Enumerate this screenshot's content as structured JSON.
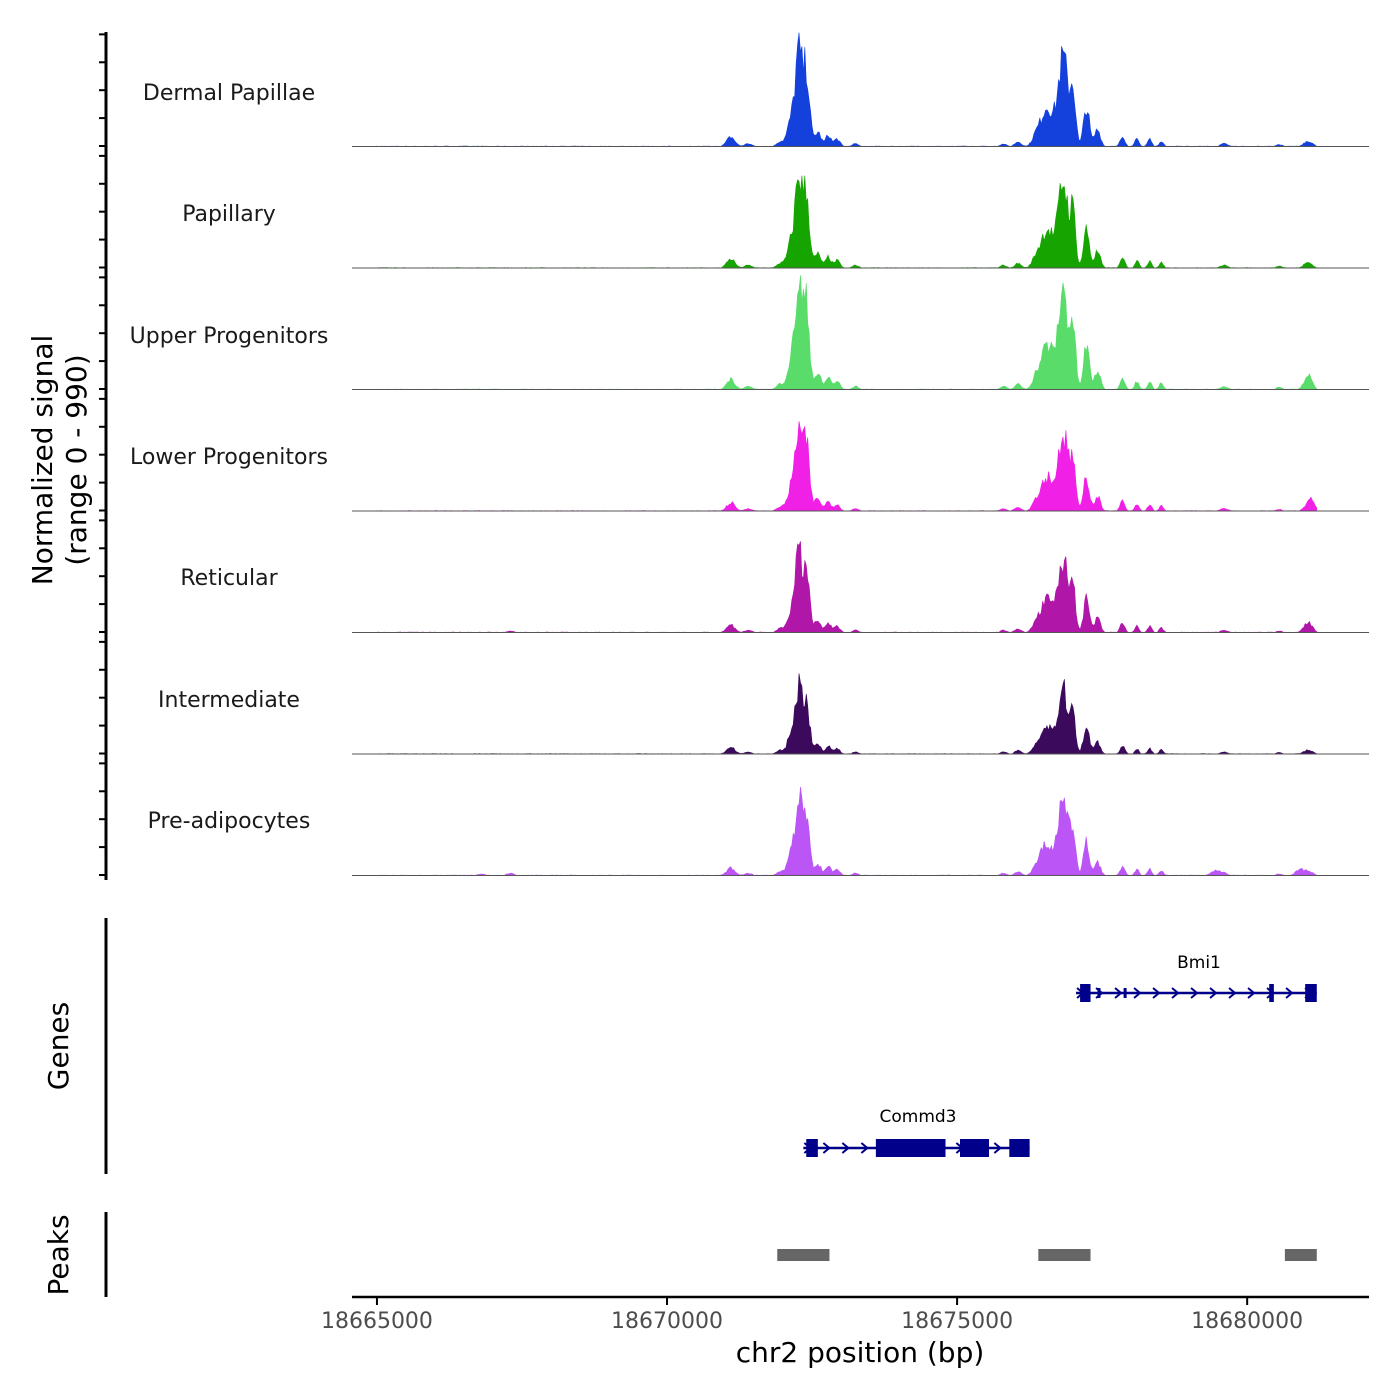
{
  "chart_data": {
    "type": "area",
    "title": "",
    "ylabel_line1": "Normalized signal",
    "ylabel_line2": "(range 0 - 990)",
    "ylim": [
      0,
      990
    ],
    "xlabel": "chr2 position (bp)",
    "xlim": [
      18664570,
      18682100
    ],
    "region": [
      18665000,
      18681200
    ],
    "xticks": [
      {
        "value": 18665000,
        "label": "18665000"
      },
      {
        "value": 18670000,
        "label": "18670000"
      },
      {
        "value": 18675000,
        "label": "18675000"
      },
      {
        "value": 18680000,
        "label": "18680000"
      }
    ],
    "peak_shape": [
      {
        "pos": 18671100,
        "width": 70,
        "h": 0.1
      },
      {
        "pos": 18671400,
        "width": 60,
        "h": 0.03
      },
      {
        "pos": 18671950,
        "width": 60,
        "h": 0.05
      },
      {
        "pos": 18672150,
        "width": 70,
        "h": 0.3
      },
      {
        "pos": 18672270,
        "width": 55,
        "h": 0.92
      },
      {
        "pos": 18672400,
        "width": 55,
        "h": 0.8
      },
      {
        "pos": 18672600,
        "width": 55,
        "h": 0.15
      },
      {
        "pos": 18672780,
        "width": 45,
        "h": 0.12
      },
      {
        "pos": 18672930,
        "width": 50,
        "h": 0.08
      },
      {
        "pos": 18673250,
        "width": 50,
        "h": 0.03
      },
      {
        "pos": 18675800,
        "width": 50,
        "h": 0.03
      },
      {
        "pos": 18676050,
        "width": 55,
        "h": 0.05
      },
      {
        "pos": 18676350,
        "width": 60,
        "h": 0.08
      },
      {
        "pos": 18676550,
        "width": 110,
        "h": 0.42
      },
      {
        "pos": 18676830,
        "width": 85,
        "h": 0.93
      },
      {
        "pos": 18677000,
        "width": 45,
        "h": 0.55
      },
      {
        "pos": 18677230,
        "width": 50,
        "h": 0.42
      },
      {
        "pos": 18677420,
        "width": 50,
        "h": 0.18
      },
      {
        "pos": 18677850,
        "width": 40,
        "h": 0.12
      },
      {
        "pos": 18678100,
        "width": 35,
        "h": 0.08
      },
      {
        "pos": 18678320,
        "width": 35,
        "h": 0.08
      },
      {
        "pos": 18678520,
        "width": 35,
        "h": 0.06
      },
      {
        "pos": 18679600,
        "width": 60,
        "h": 0.03
      },
      {
        "pos": 18680550,
        "width": 50,
        "h": 0.02
      },
      {
        "pos": 18681050,
        "width": 70,
        "h": 0.06
      }
    ],
    "tracks": [
      {
        "name": "Dermal Papillae",
        "color": "#1440dc",
        "scale": 0.78,
        "extra": []
      },
      {
        "name": "Papillary",
        "color": "#16a500",
        "scale": 0.76,
        "extra": []
      },
      {
        "name": "Upper Progenitors",
        "color": "#5adc6b",
        "scale": 0.86,
        "extra": [
          {
            "pos": 18681050,
            "width": 60,
            "h": 0.08
          }
        ]
      },
      {
        "name": "Lower Progenitors",
        "color": "#f020e6",
        "scale": 0.68,
        "extra": [
          {
            "pos": 18681100,
            "width": 60,
            "h": 0.1
          }
        ]
      },
      {
        "name": "Reticular",
        "color": "#b016a8",
        "scale": 0.64,
        "extra": [
          {
            "pos": 18667300,
            "width": 60,
            "h": 0.02
          },
          {
            "pos": 18681050,
            "width": 70,
            "h": 0.08
          }
        ]
      },
      {
        "name": "Intermediate",
        "color": "#3c0a5c",
        "scale": 0.56,
        "extra": []
      },
      {
        "name": "Pre-adipocytes",
        "color": "#bb55f5",
        "scale": 0.64,
        "extra": [
          {
            "pos": 18667300,
            "width": 60,
            "h": 0.03
          },
          {
            "pos": 18666800,
            "width": 60,
            "h": 0.02
          },
          {
            "pos": 18679450,
            "width": 80,
            "h": 0.06
          },
          {
            "pos": 18680900,
            "width": 70,
            "h": 0.07
          }
        ]
      }
    ],
    "genes_label": "Genes",
    "genes": [
      {
        "name": "Bmi1",
        "strand": "+",
        "start": 18677050,
        "end": 18681200,
        "color": "#00008b",
        "exons": [
          [
            18677120,
            18677300,
            "cds"
          ],
          [
            18677420,
            18677470,
            "utr"
          ],
          [
            18677870,
            18677900,
            "utr"
          ],
          [
            18680380,
            18680460,
            "cds"
          ],
          [
            18681000,
            18681200,
            "cds"
          ]
        ]
      },
      {
        "name": "Commd3",
        "strand": "+",
        "start": 18672350,
        "end": 18676250,
        "color": "#00008b",
        "exons": [
          [
            18672400,
            18672600,
            "cds"
          ],
          [
            18673600,
            18674800,
            "cds"
          ],
          [
            18675050,
            18675550,
            "cds"
          ],
          [
            18675900,
            18676250,
            "cds"
          ]
        ]
      }
    ],
    "peaks_label": "Peaks",
    "peaks_color": "#666666",
    "peaks": [
      [
        18671900,
        18672800
      ],
      [
        18676400,
        18677300
      ],
      [
        18680650,
        18681200
      ]
    ]
  }
}
